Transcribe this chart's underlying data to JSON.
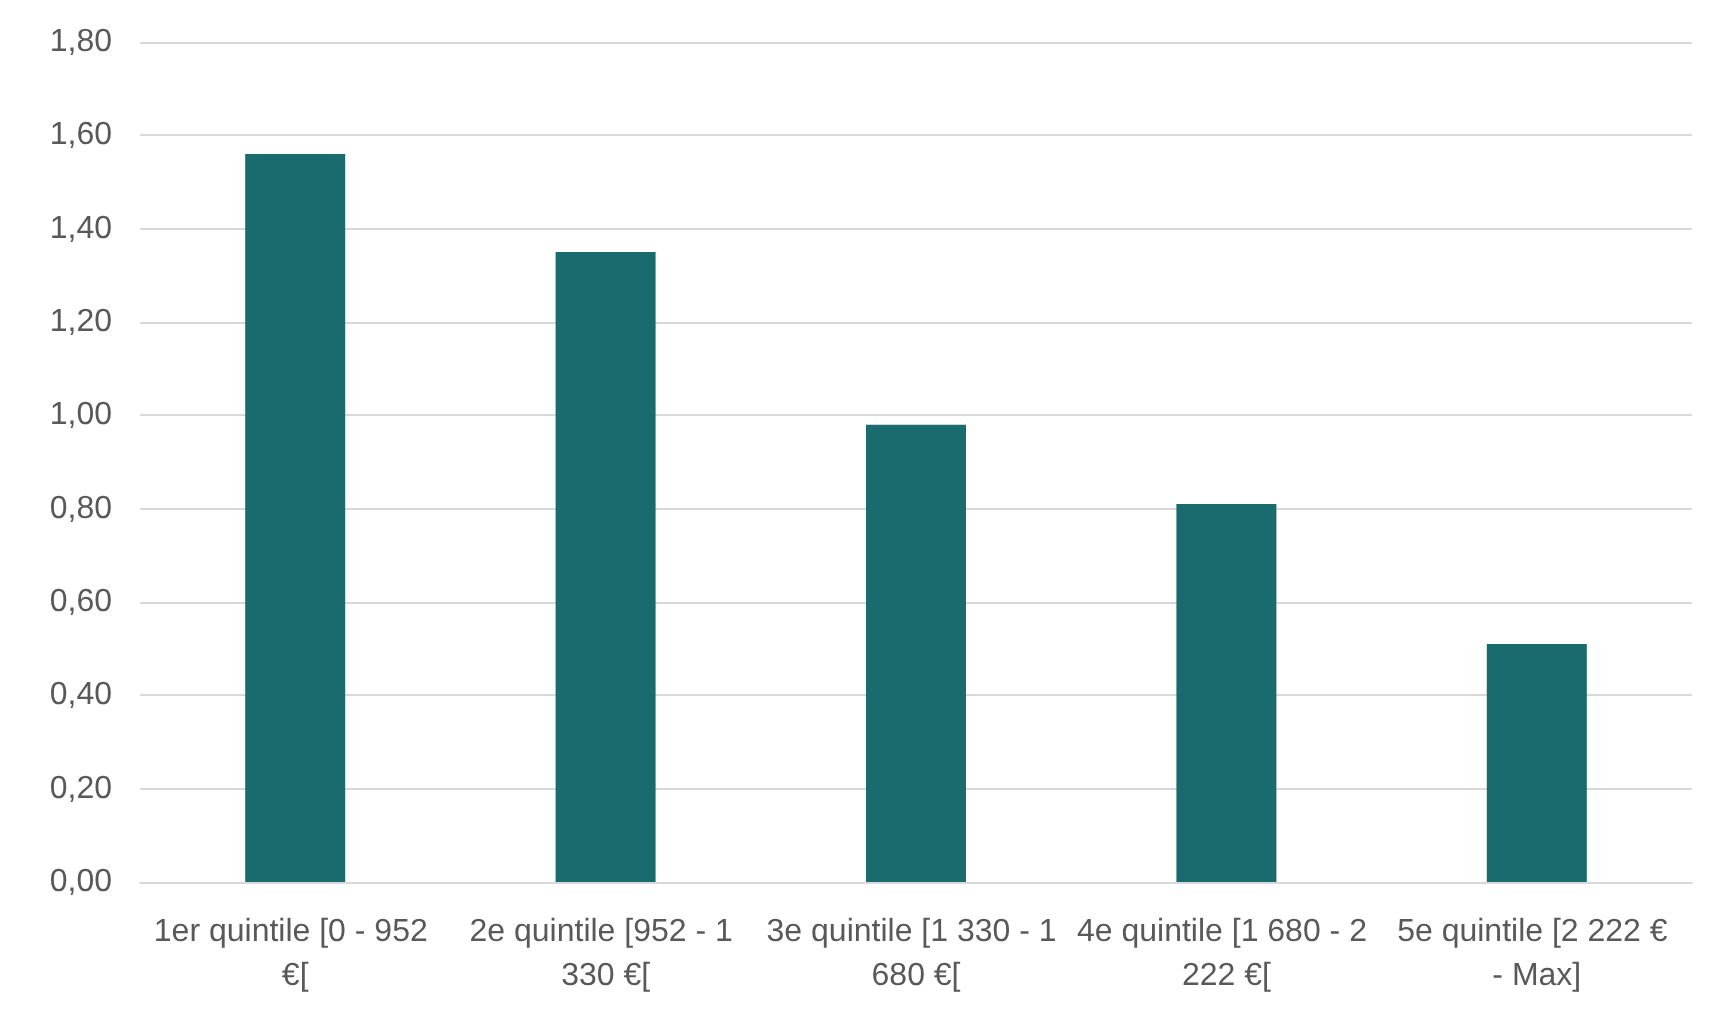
{
  "chart_data": {
    "type": "bar",
    "categories": [
      "1er quintile [0 - 952 €[",
      "2e quintile [952 - 1 330 €[",
      "3e quintile [1 330 - 1 680 €[",
      "4e quintile [1 680 - 2 222 €[",
      "5e quintile [2 222 € - Max]"
    ],
    "values": [
      1.56,
      1.35,
      0.98,
      0.81,
      0.51
    ],
    "color": "#1a6b6e",
    "ylim": [
      0,
      1.8
    ],
    "yticks": [
      {
        "value": 0,
        "label": "0,00"
      },
      {
        "value": 0.2,
        "label": "0,20"
      },
      {
        "value": 0.4,
        "label": "0,40"
      },
      {
        "value": 0.6,
        "label": "0,60"
      },
      {
        "value": 0.8,
        "label": "0,80"
      },
      {
        "value": 1,
        "label": "1,00"
      },
      {
        "value": 1.2,
        "label": "1,20"
      },
      {
        "value": 1.4,
        "label": "1,40"
      },
      {
        "value": 1.6,
        "label": "1,60"
      },
      {
        "value": 1.8,
        "label": "1,80"
      }
    ],
    "grid": "y"
  }
}
